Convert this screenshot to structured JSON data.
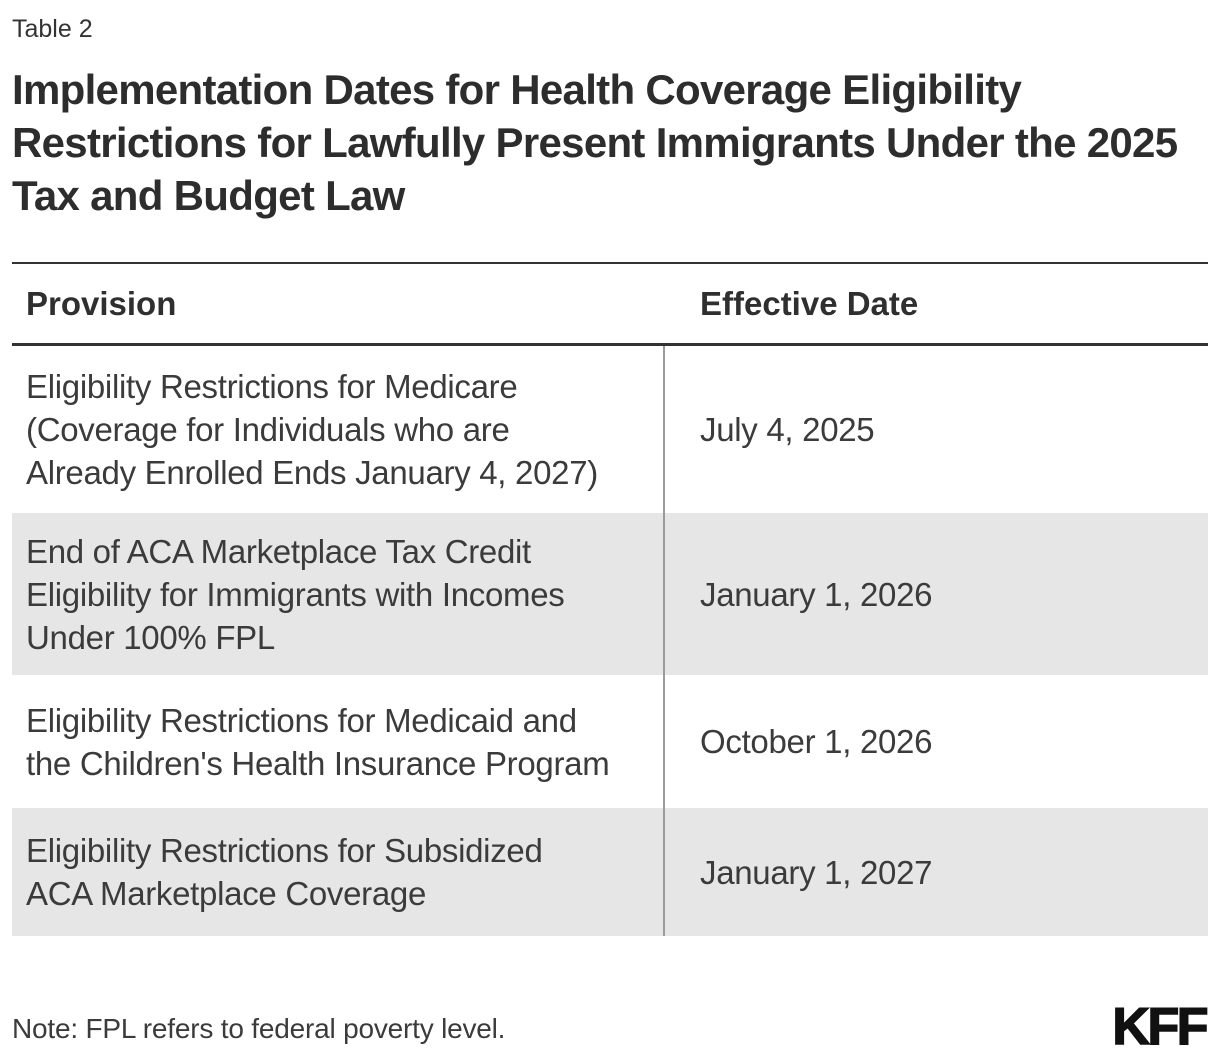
{
  "label": "Table 2",
  "title_lines": [
    "Implementation Dates for Health Coverage Eligibility",
    "Restrictions for Lawfully Present Immigrants Under the 2025",
    "Tax and Budget Law"
  ],
  "columns": {
    "provision": "Provision",
    "effective_date": "Effective Date"
  },
  "rows": [
    {
      "provision_lines": [
        "Eligibility Restrictions for Medicare",
        "(Coverage for Individuals who are",
        "Already Enrolled Ends January 4, 2027)"
      ],
      "effective_date": "July 4, 2025"
    },
    {
      "provision_lines": [
        "End of ACA Marketplace Tax Credit",
        "Eligibility for Immigrants with Incomes",
        "Under 100% FPL"
      ],
      "effective_date": "January 1, 2026"
    },
    {
      "provision_lines": [
        "Eligibility Restrictions for Medicaid and",
        "the Children's Health Insurance Program"
      ],
      "effective_date": "October 1, 2026"
    },
    {
      "provision_lines": [
        "Eligibility Restrictions for Subsidized",
        "ACA Marketplace Coverage"
      ],
      "effective_date": "January 1, 2027"
    }
  ],
  "note": "Note: FPL refers to federal poverty level.",
  "logo": {
    "text": "KFF"
  },
  "colors": {
    "heading": "#2d2d2d",
    "body_text": "#3b3b3b",
    "row_shade": "#e6e6e6",
    "rule_dark": "#333333",
    "column_divider": "#9b9b9b",
    "logo": "#111111"
  },
  "chart_data": {
    "type": "table",
    "label": "Table 2",
    "title": "Implementation Dates for Health Coverage Eligibility Restrictions for Lawfully Present Immigrants Under the 2025 Tax and Budget Law",
    "columns": [
      "Provision",
      "Effective Date"
    ],
    "rows": [
      [
        "Eligibility Restrictions for Medicare (Coverage for Individuals who are Already Enrolled Ends January 4, 2027)",
        "July 4, 2025"
      ],
      [
        "End of ACA Marketplace Tax Credit Eligibility for Immigrants with Incomes Under 100% FPL",
        "January 1, 2026"
      ],
      [
        "Eligibility Restrictions for Medicaid and the Children's Health Insurance Program",
        "October 1, 2026"
      ],
      [
        "Eligibility Restrictions for Subsidized ACA Marketplace Coverage",
        "January 1, 2027"
      ]
    ],
    "shaded_row_indices": [
      1,
      3
    ],
    "note": "Note: FPL refers to federal poverty level.",
    "source_logo": "KFF"
  }
}
